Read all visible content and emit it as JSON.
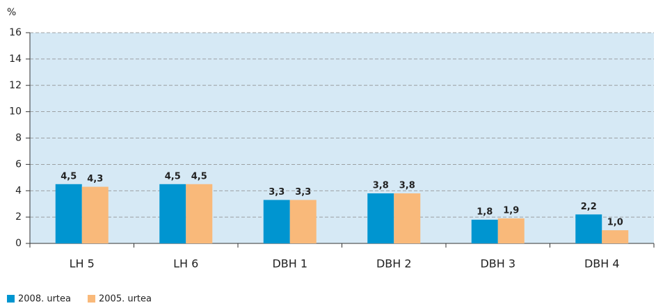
{
  "chart_data": {
    "type": "bar",
    "ylabel": "%",
    "categories": [
      "LH 5",
      "LH 6",
      "DBH 1",
      "DBH 2",
      "DBH 3",
      "DBH 4"
    ],
    "series": [
      {
        "name": "2008. urtea",
        "color": "#0095d0",
        "values": [
          4.5,
          4.5,
          3.3,
          3.8,
          1.8,
          2.2
        ],
        "value_labels": [
          "4,5",
          "4,5",
          "3,3",
          "3,8",
          "1,8",
          "2,2"
        ]
      },
      {
        "name": "2005. urtea",
        "color": "#f9b97a",
        "values": [
          4.3,
          4.5,
          3.3,
          3.8,
          1.9,
          1.0
        ],
        "value_labels": [
          "4,3",
          "4,5",
          "3,3",
          "3,8",
          "1,9",
          "1,0"
        ]
      }
    ],
    "ylim": [
      0,
      16
    ],
    "yticks": [
      0,
      2,
      4,
      6,
      8,
      10,
      12,
      14,
      16
    ],
    "grid": true,
    "legend": "bottom-left"
  }
}
